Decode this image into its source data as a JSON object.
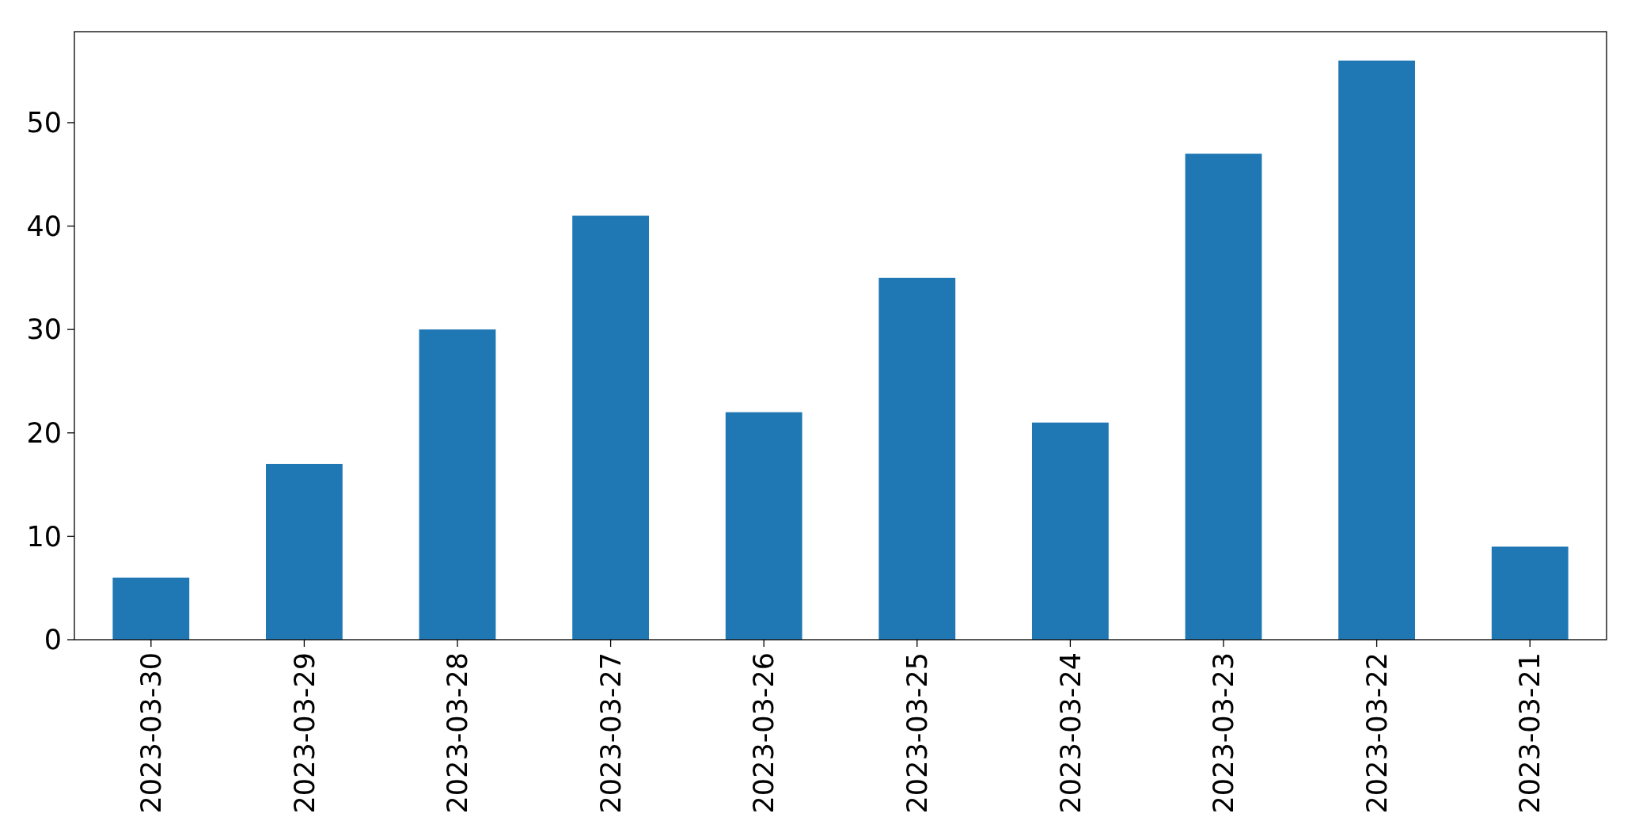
{
  "chart_data": {
    "type": "bar",
    "categories": [
      "2023-03-30",
      "2023-03-29",
      "2023-03-28",
      "2023-03-27",
      "2023-03-26",
      "2023-03-25",
      "2023-03-24",
      "2023-03-23",
      "2023-03-22",
      "2023-03-21"
    ],
    "values": [
      6,
      17,
      30,
      41,
      22,
      35,
      21,
      47,
      56,
      9
    ],
    "color": "#1f77b4",
    "ylim": [
      0,
      58.8
    ],
    "yticks": [
      0,
      10,
      20,
      30,
      40,
      50
    ],
    "grid": false
  }
}
